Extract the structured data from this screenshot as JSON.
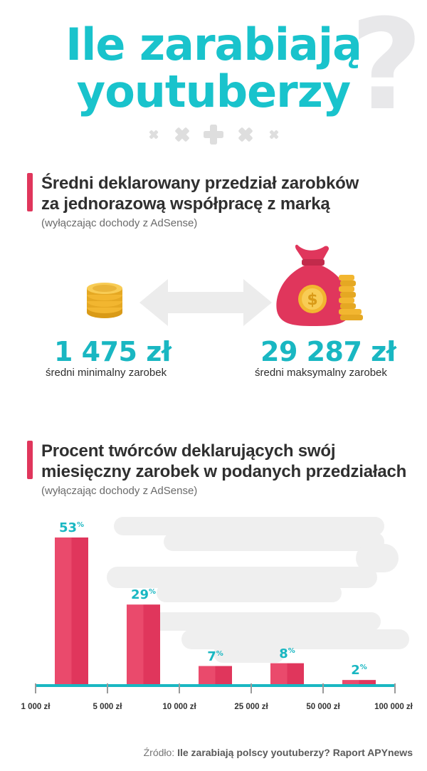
{
  "title": {
    "line1": "Ile zarabiają",
    "line2": "youtuberzy",
    "mark": "?"
  },
  "section1": {
    "title_line1": "Średni deklarowany przedział zarobków",
    "title_line2": "za jednorazową współpracę z marką",
    "subtitle": "(wyłączając dochody z AdSense)",
    "min_value": "1 475 zł",
    "min_caption": "średni minimalny zarobek",
    "max_value": "29 287 zł",
    "max_caption": "średni maksymalny zarobek"
  },
  "section2": {
    "title_line1": "Procent twórców deklarujących swój",
    "title_line2": "miesięczny zarobek w podanych przedziałach",
    "subtitle": "(wyłączając dochody z AdSense)"
  },
  "chart_data": {
    "type": "bar",
    "categories": [
      "1 000 zł – 5 000 zł",
      "5 000 zł – 10 000 zł",
      "10 000 zł – 25 000 zł",
      "25 000 zł – 50 000 zł",
      "50 000 zł – 100 000 zł"
    ],
    "values": [
      53,
      29,
      7,
      8,
      2
    ],
    "value_suffix": "%",
    "tick_labels": [
      "1 000 zł",
      "5 000 zł",
      "10 000 zł",
      "25 000 zł",
      "50 000 zł",
      "100 000 zł"
    ],
    "ylim": [
      0,
      53
    ],
    "bar_color": "#e0365c",
    "label_color": "#19b7c2",
    "axis_color": "#19b7c2"
  },
  "source": {
    "prefix": "Źródło:",
    "text": "Ile zarabiają polscy youtuberzy? Raport APYnews"
  },
  "colors": {
    "accent": "#19c3cc",
    "pink": "#e0365c",
    "gold": "#f2b630"
  }
}
